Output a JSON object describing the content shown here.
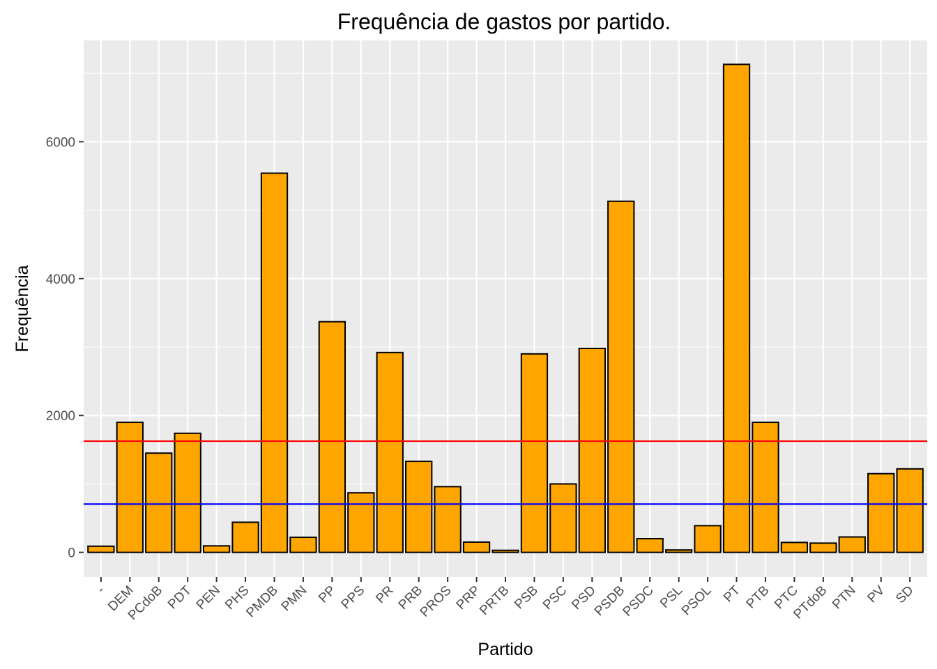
{
  "chart_data": {
    "type": "bar",
    "title": "Frequência de gastos por partido.",
    "xlabel": "Partido",
    "ylabel": "Frequência",
    "categories": [
      "-",
      "DEM",
      "PCdoB",
      "PDT",
      "PEN",
      "PHS",
      "PMDB",
      "PMN",
      "PP",
      "PPS",
      "PR",
      "PRB",
      "PROS",
      "PRP",
      "PRTB",
      "PSB",
      "PSC",
      "PSD",
      "PSDB",
      "PSDC",
      "PSL",
      "PSOL",
      "PT",
      "PTB",
      "PTC",
      "PTdoB",
      "PTN",
      "PV",
      "SD"
    ],
    "values": [
      90,
      1900,
      1450,
      1740,
      95,
      440,
      5540,
      220,
      3370,
      870,
      2920,
      1330,
      960,
      150,
      30,
      2900,
      1000,
      2980,
      5130,
      200,
      35,
      390,
      7130,
      1900,
      145,
      135,
      225,
      1150,
      1220
    ],
    "yticks": [
      0,
      2000,
      4000,
      6000
    ],
    "ylim": [
      -360,
      7480
    ],
    "grid": true,
    "legend": "none",
    "reference_lines": [
      {
        "value": 1625,
        "color": "#ff0000"
      },
      {
        "value": 705,
        "color": "#0000ff"
      }
    ],
    "colors": {
      "bar_fill": "#ffa500",
      "bar_stroke": "#000000",
      "panel": "#ebebeb",
      "grid": "#ffffff"
    }
  }
}
